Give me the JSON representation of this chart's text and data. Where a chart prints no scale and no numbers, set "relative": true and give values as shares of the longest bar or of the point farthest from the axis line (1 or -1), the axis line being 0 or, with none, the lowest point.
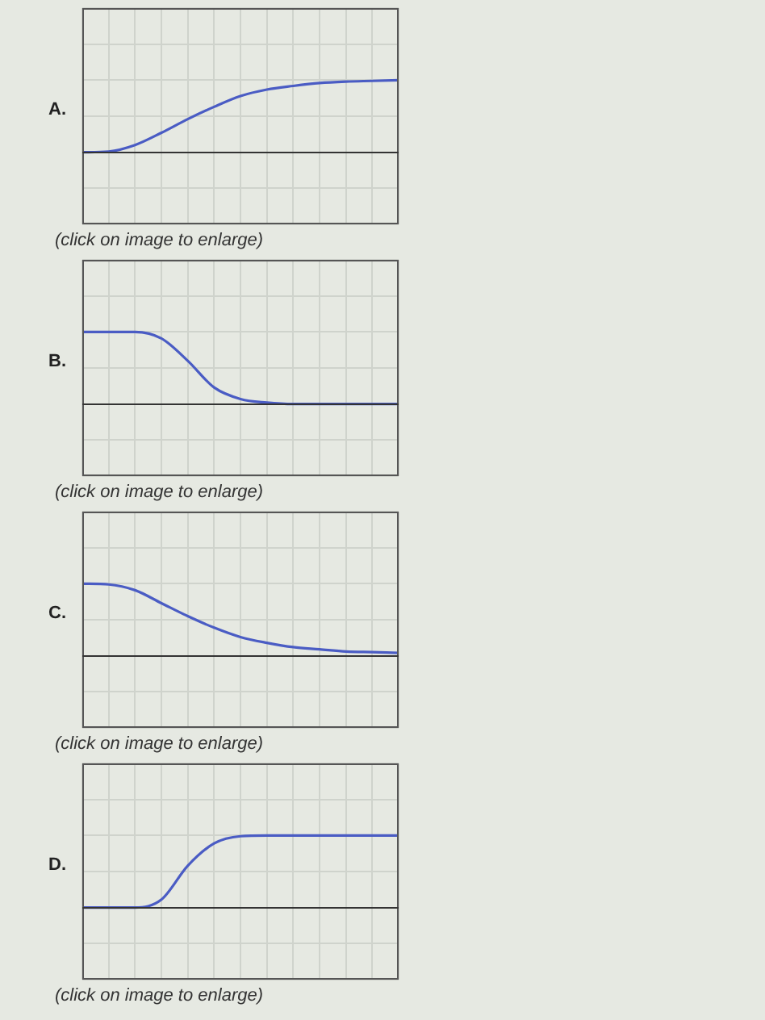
{
  "chart_data": [
    {
      "type": "line",
      "title": "A.",
      "annotations": [
        "(click on image to enlarge)"
      ],
      "relative": true,
      "grid": true,
      "categories": [
        null,
        null,
        null,
        null,
        null,
        null,
        null,
        null,
        null,
        null,
        null,
        null,
        null
      ],
      "series": [
        {
          "color": "#4a5cc4",
          "values": [
            0,
            0.01,
            0.1,
            0.27,
            0.46,
            0.63,
            0.78,
            0.87,
            0.92,
            0.96,
            0.98,
            0.99,
            1
          ]
        }
      ]
    },
    {
      "type": "line",
      "title": "B.",
      "annotations": [
        "(click on image to enlarge)"
      ],
      "relative": true,
      "grid": true,
      "categories": [
        null,
        null,
        null,
        null,
        null,
        null,
        null,
        null,
        null,
        null,
        null,
        null,
        null
      ],
      "series": [
        {
          "color": "#4a5cc4",
          "values": [
            1,
            1,
            1,
            0.91,
            0.6,
            0.23,
            0.07,
            0.02,
            0,
            0,
            0,
            0,
            0
          ]
        }
      ]
    },
    {
      "type": "line",
      "title": "C.",
      "annotations": [
        "(click on image to enlarge)"
      ],
      "relative": true,
      "grid": true,
      "categories": [
        null,
        null,
        null,
        null,
        null,
        null,
        null,
        null,
        null,
        null,
        null,
        null,
        null
      ],
      "series": [
        {
          "color": "#4a5cc4",
          "values": [
            1,
            0.99,
            0.91,
            0.73,
            0.55,
            0.39,
            0.26,
            0.18,
            0.12,
            0.09,
            0.06,
            0.05,
            0.04
          ]
        }
      ]
    },
    {
      "type": "line",
      "title": "D.",
      "annotations": [
        "(click on image to enlarge)"
      ],
      "relative": true,
      "grid": true,
      "categories": [
        null,
        null,
        null,
        null,
        null,
        null,
        null,
        null,
        null,
        null,
        null,
        null,
        null
      ],
      "series": [
        {
          "color": "#4a5cc4",
          "values": [
            0,
            0,
            0,
            0.11,
            0.58,
            0.89,
            0.99,
            1,
            1,
            1,
            1,
            1,
            1
          ]
        }
      ]
    }
  ]
}
